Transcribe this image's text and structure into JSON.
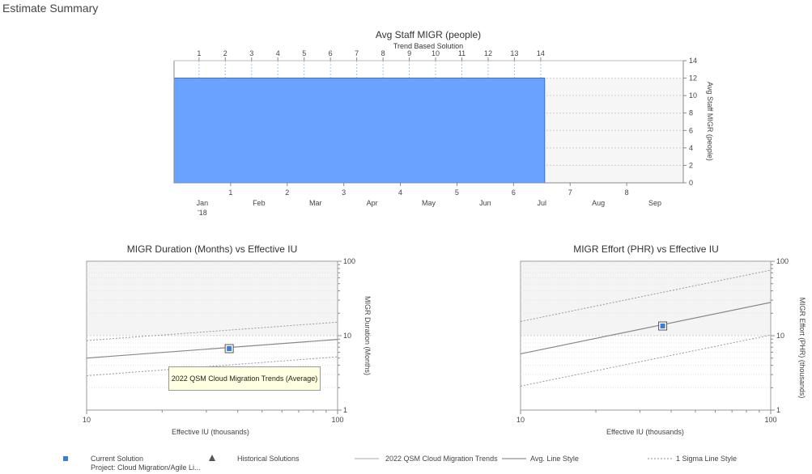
{
  "page": {
    "title": "Estimate Summary"
  },
  "tooltip": {
    "text": "2022 QSM Cloud Migration Trends (Average)"
  },
  "chart_data": [
    {
      "type": "bar",
      "title": "Avg Staff MIGR (people)",
      "subtitle": "Trend Based Solution",
      "ylabel": "Avg Staff MIGR (people)",
      "ylim": [
        0,
        14
      ],
      "yticks": [
        0,
        2,
        4,
        6,
        8,
        10,
        12,
        14
      ],
      "xlim": [
        0,
        9
      ],
      "top_ticks": [
        "1",
        "2",
        "3",
        "4",
        "5",
        "6",
        "7",
        "8",
        "9",
        "10",
        "11",
        "12",
        "13",
        "14"
      ],
      "month_index_ticks": [
        "1",
        "2",
        "3",
        "4",
        "5",
        "6",
        "7",
        "8"
      ],
      "month_labels": [
        "Jan",
        "Feb",
        "Mar",
        "Apr",
        "May",
        "Jun",
        "Jul",
        "Aug",
        "Sep"
      ],
      "year_label": "'18",
      "bar": {
        "x_start": 0,
        "x_end": 6.55,
        "value": 12,
        "color": "#6aa3ff"
      },
      "grid": true
    },
    {
      "type": "line",
      "title": "MIGR Duration (Months) vs Effective IU",
      "xlabel": "Effective IU (thousands)",
      "ylabel": "MIGR Duration (Months)",
      "xscale": "log",
      "yscale": "log",
      "xlim": [
        10,
        100
      ],
      "ylim": [
        1,
        100
      ],
      "xticks": [
        "10",
        "100"
      ],
      "yticks": [
        "1",
        "10",
        "100"
      ],
      "series": [
        {
          "x": [
            10,
            100
          ],
          "y": [
            5.0,
            8.9
          ]
        },
        {
          "x": [
            10,
            100
          ],
          "y": [
            8.6,
            15.2
          ]
        },
        {
          "x": [
            10,
            100
          ],
          "y": [
            2.9,
            5.2
          ]
        }
      ],
      "current_solution": {
        "x": 37,
        "y": 6.7
      }
    },
    {
      "type": "line",
      "title": "MIGR Effort (PHR) vs Effective IU",
      "xlabel": "Effective IU (thousands)",
      "ylabel": "MIGR Effort (PHR) (thousands)",
      "xscale": "log",
      "yscale": "log",
      "xlim": [
        10,
        100
      ],
      "ylim": [
        1,
        100
      ],
      "xticks": [
        "10",
        "100"
      ],
      "yticks": [
        "1",
        "10",
        "100"
      ],
      "series": [
        {
          "x": [
            10,
            100
          ],
          "y": [
            5.7,
            28
          ]
        },
        {
          "x": [
            10,
            100
          ],
          "y": [
            15.5,
            76
          ]
        },
        {
          "x": [
            10,
            100
          ],
          "y": [
            2.1,
            10.2
          ]
        }
      ],
      "current_solution": {
        "x": 37,
        "y": 13.5
      }
    }
  ],
  "legend": {
    "current_solution": "Current Solution",
    "project": "Project: Cloud Migration/Agile Li...",
    "historical": "Historical Solutions",
    "trends": "2022 QSM Cloud Migration Trends",
    "avg_style": "Avg. Line Style",
    "sigma_style": "1 Sigma Line Style",
    "marker_color": "#3b7ddd"
  }
}
